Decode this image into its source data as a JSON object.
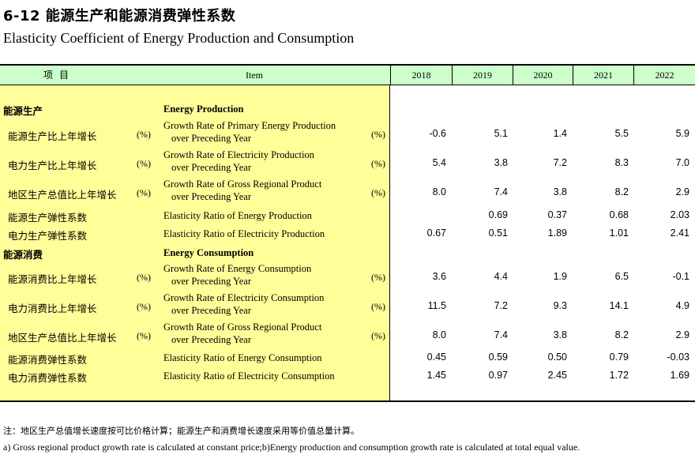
{
  "title_cn": "6-12  能源生产和能源消费弹性系数",
  "title_en": "Elasticity Coefficient of Energy Production and Consumption",
  "header": {
    "item_cn": "项目",
    "item_en": "Item",
    "years": [
      "2018",
      "2019",
      "2020",
      "2021",
      "2022"
    ]
  },
  "rows": [
    {
      "type": "section",
      "cn": "能源生产",
      "en": "Energy Production"
    },
    {
      "type": "data",
      "cn": "能源生产比上年增长",
      "unit_cn": "(%)",
      "en1": "Growth Rate of Primary Energy Production",
      "en2": "over Preceding Year",
      "unit_en": "(%)",
      "values": [
        "-0.6",
        "5.1",
        "1.4",
        "5.5",
        "5.9"
      ]
    },
    {
      "type": "data",
      "cn": "电力生产比上年增长",
      "unit_cn": "(%)",
      "en1": "Growth Rate of Electricity Production",
      "en2": "over Preceding Year",
      "unit_en": "(%)",
      "values": [
        "5.4",
        "3.8",
        "7.2",
        "8.3",
        "7.0"
      ]
    },
    {
      "type": "data",
      "cn": "地区生产总值比上年增长",
      "unit_cn": "(%)",
      "en1": "Growth Rate of Gross Regional Product",
      "en2": "over Preceding Year",
      "unit_en": "(%)",
      "values": [
        "8.0",
        "7.4",
        "3.8",
        "8.2",
        "2.9"
      ]
    },
    {
      "type": "single",
      "cn": "能源生产弹性系数",
      "en1": "Elasticity Ratio of Energy Production",
      "values": [
        "",
        "0.69",
        "0.37",
        "0.68",
        "2.03"
      ]
    },
    {
      "type": "single",
      "cn": "电力生产弹性系数",
      "en1": "Elasticity Ratio of Electricity Production",
      "values": [
        "0.67",
        "0.51",
        "1.89",
        "1.01",
        "2.41"
      ]
    },
    {
      "type": "section",
      "cn": "能源消费",
      "en": "Energy Consumption"
    },
    {
      "type": "data",
      "cn": "能源消费比上年增长",
      "unit_cn": "(%)",
      "en1": "Growth Rate of Energy Consumption",
      "en2": "over Preceding Year",
      "unit_en": "(%)",
      "values": [
        "3.6",
        "4.4",
        "1.9",
        "6.5",
        "-0.1"
      ]
    },
    {
      "type": "data",
      "cn": "电力消费比上年增长",
      "unit_cn": "(%)",
      "en1": "Growth Rate of Electricity Consumption",
      "en2": "over Preceding Year",
      "unit_en": "(%)",
      "values": [
        "11.5",
        "7.2",
        "9.3",
        "14.1",
        "4.9"
      ]
    },
    {
      "type": "data",
      "cn": "地区生产总值比上年增长",
      "unit_cn": "(%)",
      "en1": "Growth Rate of Gross Regional Product",
      "en2": "over Preceding Year",
      "unit_en": "(%)",
      "values": [
        "8.0",
        "7.4",
        "3.8",
        "8.2",
        "2.9"
      ]
    },
    {
      "type": "single",
      "cn": "能源消费弹性系数",
      "en1": "Elasticity Ratio of Energy Consumption",
      "values": [
        "0.45",
        "0.59",
        "0.50",
        "0.79",
        "-0.03"
      ]
    },
    {
      "type": "single",
      "cn": "电力消费弹性系数",
      "en1": "Elasticity Ratio of Electricity Consumption",
      "values": [
        "1.45",
        "0.97",
        "2.45",
        "1.72",
        "1.69"
      ]
    }
  ],
  "note_cn": "注：地区生产总值增长速度按可比价格计算；能源生产和消费增长速度采用等价值总量计算。",
  "note_en": "a) Gross regional product  growth rate is calculated at constant price;b)Energy production and consumption growth rate is calculated at total equal value.",
  "colors": {
    "header_bg": "#ccffcc",
    "item_bg": "#ffff99"
  }
}
